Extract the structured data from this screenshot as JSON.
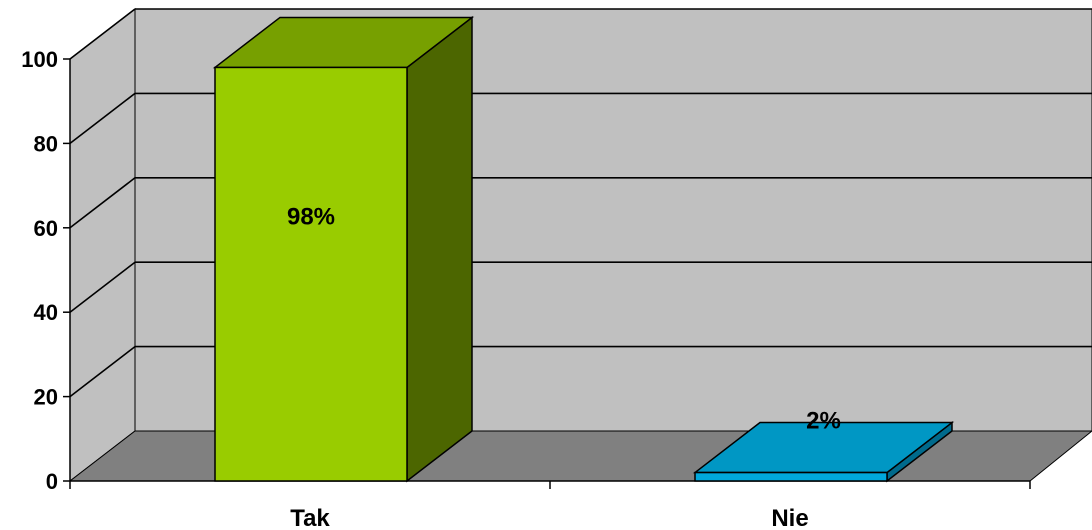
{
  "chart_data": {
    "type": "bar",
    "categories": [
      "Tak",
      "Nie"
    ],
    "values": [
      98,
      2
    ],
    "data_labels": [
      "98%",
      "2%"
    ],
    "ylim": [
      0,
      100
    ],
    "yticks": [
      0,
      20,
      40,
      60,
      80,
      100
    ],
    "grid": true,
    "three_d": true,
    "colors": {
      "bars_front": [
        "#99CC00",
        "#00A8DC"
      ],
      "bars_top": [
        "#77A000",
        "#0097C4"
      ],
      "bars_side": [
        "#4C6600",
        "#006A8C"
      ],
      "back_wall": "#C0C0C0",
      "floor": "#808080",
      "gridline": "#000000"
    }
  }
}
